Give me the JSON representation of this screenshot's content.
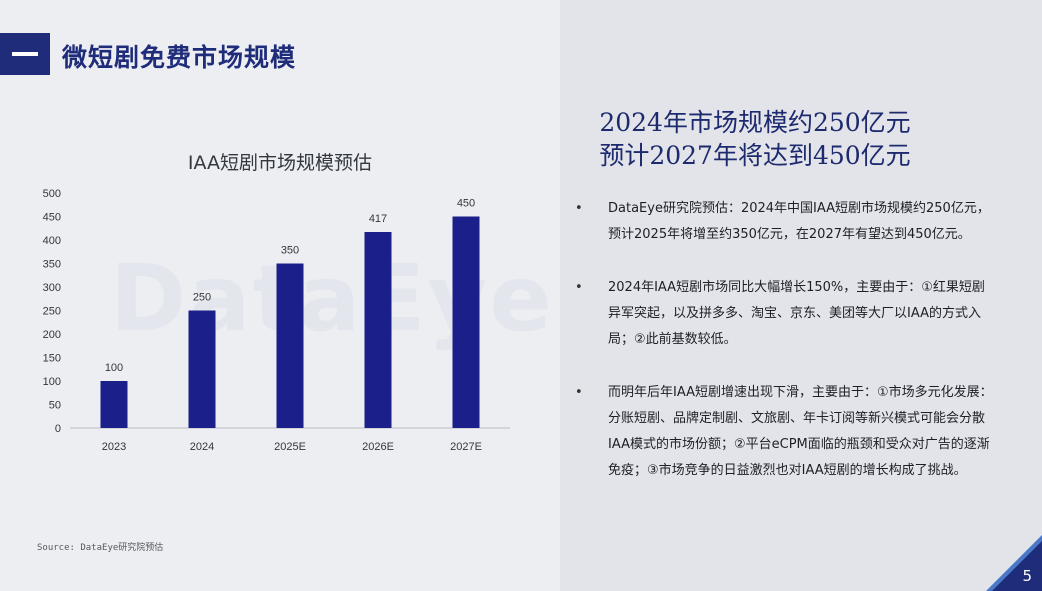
{
  "slide": {
    "title": "微短剧免费市场规模",
    "watermark": "DataEye",
    "source": "Source: DataEye研究院预估",
    "page_number": "5"
  },
  "headline": {
    "line1": "2024年市场规模约250亿元",
    "line2": "预计2027年将达到450亿元"
  },
  "bullets": [
    "DataEye研究院预估：2024年中国IAA短剧市场规模约250亿元，预计2025年将增至约350亿元，在2027年有望达到450亿元。",
    "2024年IAA短剧市场同比大幅增长150%，主要由于：①红果短剧异军突起，以及拼多多、淘宝、京东、美团等大厂以IAA的方式入局；②此前基数较低。",
    "而明年后年IAA短剧增速出现下滑，主要由于：①市场多元化发展：分账短剧、品牌定制剧、文旅剧、年卡订阅等新兴模式可能会分散IAA模式的市场份额；②平台eCPM面临的瓶颈和受众对广告的逐渐免疫；③市场竞争的日益激烈也对IAA短剧的增长构成了挑战。"
  ],
  "colors": {
    "brand": "#1f2c7a",
    "bar": "#1b1f8a",
    "accent": "#4a78c8"
  },
  "chart_data": {
    "type": "bar",
    "title": "IAA短剧市场规模预估",
    "categories": [
      "2023",
      "2024",
      "2025E",
      "2026E",
      "2027E"
    ],
    "values": [
      100,
      250,
      350,
      417,
      450
    ],
    "data_labels": [
      "100",
      "250",
      "350",
      "417",
      "450"
    ],
    "ylim": [
      0,
      500
    ],
    "yticks": [
      0,
      50,
      100,
      150,
      200,
      250,
      300,
      350,
      400,
      450,
      500
    ],
    "grid": false,
    "xlabel": "",
    "ylabel": ""
  }
}
